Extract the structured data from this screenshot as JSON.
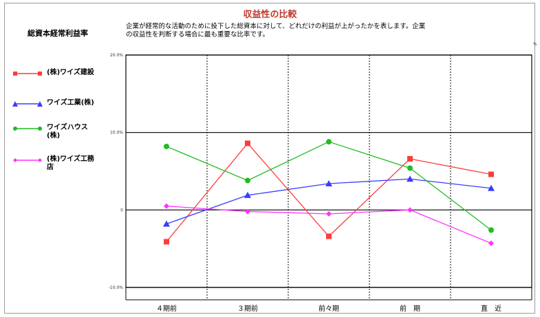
{
  "chart_data": {
    "type": "line",
    "title": "収益性の比較",
    "subject": "総資本経常利益率",
    "description_lines": [
      "企業が経常的な活動のために投下した総資本に対して、どれだけの利益が上がったかを表します。企業",
      "の収益性を判断する場合に最も重要な比率です。"
    ],
    "unit": "%",
    "categories": [
      "４期前",
      "３期前",
      "前々期",
      "前　期",
      "直　近"
    ],
    "y_ticks": [
      "20.0%",
      "10.0%",
      "0",
      "-10.0%"
    ],
    "ylim": [
      -10,
      20
    ],
    "grid": true,
    "legend_position": "left",
    "series": [
      {
        "name": "(株)ワイズ建設",
        "label_lines": [
          "(株)ワイズ建設"
        ],
        "color": "#ff3b3b",
        "marker": "square",
        "values": [
          -4.1,
          8.6,
          -3.4,
          6.6,
          4.6
        ]
      },
      {
        "name": "ワイズ工業(株)",
        "label_lines": [
          "ワイズ工業(株)"
        ],
        "color": "#3b3bff",
        "marker": "triangle",
        "values": [
          -1.8,
          1.9,
          3.4,
          4.0,
          2.8
        ]
      },
      {
        "name": "ワイズハウス(株)",
        "label_lines": [
          "ワイズハウス",
          "(株)"
        ],
        "color": "#22bb22",
        "marker": "circle",
        "values": [
          8.2,
          3.8,
          8.8,
          5.4,
          -2.6
        ]
      },
      {
        "name": "(株)ワイズ工務店",
        "label_lines": [
          "(株)ワイズ工務",
          "店"
        ],
        "color": "#ff33ff",
        "marker": "diamond",
        "values": [
          0.5,
          -0.2,
          -0.5,
          0.0,
          -4.3
        ]
      }
    ]
  }
}
